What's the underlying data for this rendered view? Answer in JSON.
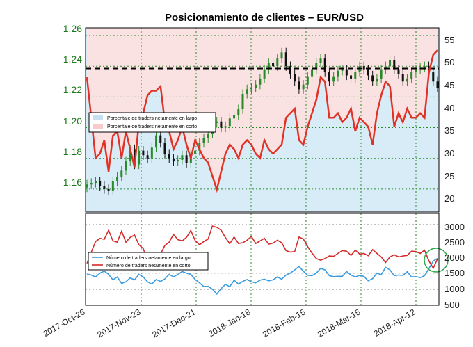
{
  "colors": {
    "long_fill": "#d8ecf7",
    "short_fill": "#fbe2e2",
    "ratio_line": "#e03226",
    "long_count_line": "#3a9be0",
    "short_count_line": "#d42a2a",
    "candle_up": "#2a8a2a",
    "candle_down": "#111111",
    "grid": "#2a8a2a",
    "ref_line": "#000000",
    "highlight_circle": "#2aa84a",
    "left_axis_text": "#1a7a1a"
  },
  "chart_data": [
    {
      "type": "candlestick+line",
      "title": "Posicionamiento de clientes – EUR/USD",
      "xlabel": "",
      "x_tick_labels": [
        "2017-Oct-26",
        "2017-Nov-23",
        "2017-Dec-21",
        "2018-Jan-18",
        "2018-Feb-15",
        "2018-Mar-15",
        "2018-Apr-12"
      ],
      "x_range": [
        "2017-10-26",
        "2018-04-21"
      ],
      "left_axis": {
        "label": "",
        "ticks": [
          "1.16",
          "1.18",
          "1.20",
          "1.22",
          "1.24",
          "1.26"
        ],
        "ylim": [
          1.145,
          1.265
        ]
      },
      "right_axis": {
        "label": "",
        "ticks": [
          "20",
          "25",
          "30",
          "35",
          "40",
          "45",
          "50",
          "55"
        ],
        "ylim": [
          16,
          57
        ]
      },
      "reference_line": {
        "axis": "left",
        "y": 1.2385,
        "style": "dashed"
      },
      "grid": true,
      "legend_entries": [
        "Porcentaje de traders netamente en largo",
        "Porcentaje de traders netamente en corto"
      ],
      "legend_placement": "middle-left",
      "price_closes": [
        1.163,
        1.164,
        1.165,
        1.162,
        1.16,
        1.159,
        1.165,
        1.168,
        1.172,
        1.178,
        1.186,
        1.176,
        1.185,
        1.182,
        1.18,
        1.187,
        1.195,
        1.19,
        1.183,
        1.18,
        1.178,
        1.179,
        1.182,
        1.177,
        1.183,
        1.185,
        1.19,
        1.193,
        1.196,
        1.203,
        1.204,
        1.2,
        1.201,
        1.206,
        1.208,
        1.212,
        1.222,
        1.225,
        1.226,
        1.228,
        1.232,
        1.238,
        1.242,
        1.24,
        1.245,
        1.249,
        1.24,
        1.235,
        1.23,
        1.225,
        1.228,
        1.233,
        1.238,
        1.242,
        1.245,
        1.236,
        1.23,
        1.233,
        1.237,
        1.238,
        1.234,
        1.232,
        1.236,
        1.24,
        1.238,
        1.234,
        1.23,
        1.232,
        1.238,
        1.24,
        1.244,
        1.238,
        1.235,
        1.23,
        1.232,
        1.236,
        1.238,
        1.239,
        1.24,
        1.236,
        1.23,
        1.226
      ],
      "series": [
        {
          "name": "Porcentaje de traders netamente en corto",
          "axis": "right",
          "values": [
            46,
            37,
            28,
            29,
            32,
            25,
            33,
            34,
            28,
            34,
            30,
            26,
            36,
            38,
            42,
            43,
            43,
            44,
            36,
            34,
            30,
            32,
            35,
            31,
            28,
            32,
            30,
            28,
            27,
            24,
            21,
            25,
            29,
            31,
            30,
            28,
            31,
            32,
            31,
            29,
            28,
            32,
            30,
            29,
            30,
            31,
            37,
            38,
            39,
            32,
            31,
            35,
            38,
            41,
            46,
            45,
            37,
            37,
            38,
            36,
            37,
            39,
            34,
            37,
            36,
            35,
            31,
            38,
            42,
            45,
            44,
            35,
            38,
            36,
            39,
            37,
            37,
            38,
            37,
            47,
            51,
            52
          ]
        }
      ]
    },
    {
      "type": "line",
      "title": "",
      "xlabel": "",
      "ylabel": "",
      "right_axis": {
        "ticks": [
          "500",
          "1000",
          "1500",
          "2000",
          "2500",
          "3000"
        ],
        "ylim": [
          500,
          3350
        ]
      },
      "grid": true,
      "legend_entries": [
        "Número de traders netamente en largo",
        "Número de traders netamente en corto"
      ],
      "legend_placement": "middle-left",
      "series": [
        {
          "name": "Número de traders netamente en largo",
          "values": [
            1470,
            1440,
            1380,
            1500,
            1560,
            1460,
            1290,
            1380,
            1180,
            1230,
            1350,
            1290,
            1460,
            1380,
            1230,
            1160,
            1300,
            1240,
            1320,
            1460,
            1380,
            1460,
            1550,
            1500,
            1460,
            1300,
            1200,
            1080,
            1090,
            1000,
            850,
            1020,
            1150,
            1080,
            1280,
            1160,
            1240,
            1300,
            1230,
            1200,
            1280,
            1310,
            1260,
            1290,
            1380,
            1310,
            1440,
            1500,
            1600,
            1710,
            1560,
            1430,
            1420,
            1500,
            1650,
            1600,
            1420,
            1390,
            1400,
            1400,
            1550,
            1440,
            1380,
            1430,
            1400,
            1260,
            1330,
            1500,
            1450,
            1680,
            1600,
            1420,
            1440,
            1430,
            1540,
            1380,
            1390,
            1360,
            1420,
            1640,
            1870,
            1960
          ]
        },
        {
          "name": "Número de traders netamente en corto",
          "values": [
            1800,
            2150,
            2480,
            2580,
            2550,
            2830,
            2500,
            2460,
            2800,
            2460,
            2610,
            2680,
            2380,
            2260,
            1900,
            1850,
            2110,
            2090,
            2360,
            2460,
            2700,
            2540,
            2500,
            2610,
            2820,
            2510,
            2380,
            2480,
            2560,
            2960,
            2920,
            2830,
            2600,
            2410,
            2620,
            2420,
            2440,
            2520,
            2640,
            2420,
            2500,
            2580,
            2400,
            2430,
            2520,
            2440,
            2200,
            2150,
            2170,
            2620,
            2560,
            2320,
            2120,
            1950,
            1900,
            1950,
            2030,
            2020,
            2110,
            2200,
            2180,
            2050,
            2210,
            2090,
            2110,
            2040,
            2230,
            2110,
            2000,
            1830,
            2000,
            2070,
            2000,
            2030,
            2050,
            2180,
            2170,
            2110,
            2210,
            1880,
            1650,
            1940
          ]
        }
      ]
    }
  ]
}
